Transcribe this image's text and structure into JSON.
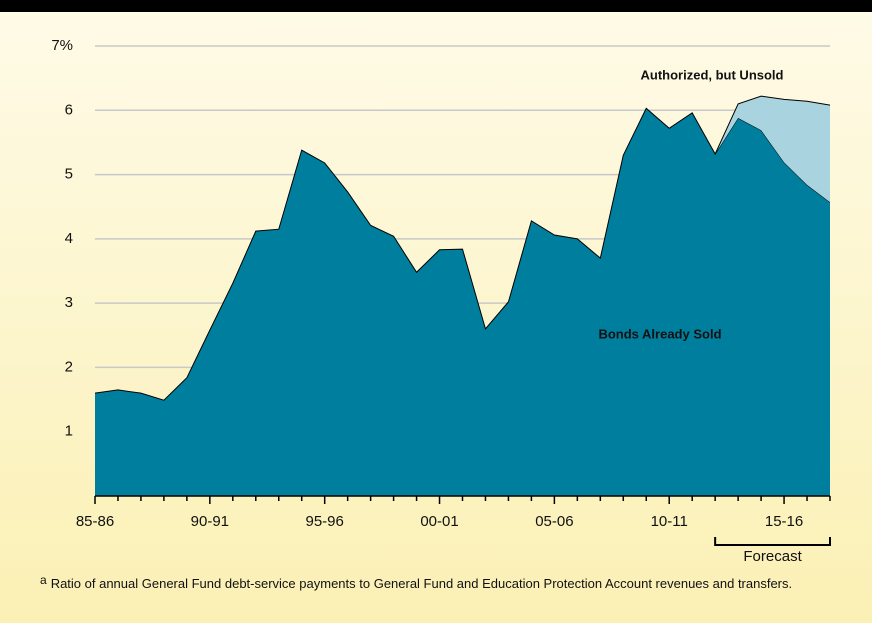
{
  "chart_data": {
    "type": "stacked_area",
    "categories": [
      "85-86",
      null,
      null,
      null,
      null,
      "90-91",
      null,
      null,
      null,
      null,
      "95-96",
      null,
      null,
      null,
      null,
      "00-01",
      null,
      null,
      null,
      null,
      "05-06",
      null,
      null,
      null,
      null,
      "10-11",
      null,
      null,
      null,
      null,
      "15-16",
      null,
      null
    ],
    "series": [
      {
        "name": "Bonds Already Sold",
        "color": "#007e9e",
        "values": [
          1.6,
          1.65,
          1.6,
          1.49,
          1.84,
          2.58,
          3.31,
          4.12,
          4.15,
          5.38,
          5.18,
          4.73,
          4.21,
          4.04,
          3.48,
          3.83,
          3.84,
          2.6,
          3.02,
          4.28,
          4.06,
          4.0,
          3.7,
          5.3,
          6.03,
          5.72,
          5.96,
          5.32,
          5.88,
          5.69,
          5.19,
          4.84,
          4.57
        ]
      },
      {
        "name": "Authorized, but Unsold",
        "color": "#a9d3df",
        "values": [
          null,
          null,
          null,
          null,
          null,
          null,
          null,
          null,
          null,
          null,
          null,
          null,
          null,
          null,
          null,
          null,
          null,
          null,
          null,
          null,
          null,
          null,
          null,
          null,
          null,
          null,
          null,
          0,
          0.22,
          0.53,
          0.98,
          1.3,
          1.51
        ]
      }
    ],
    "ylim": [
      0,
      7
    ],
    "yticks": [
      1,
      2,
      3,
      4,
      5,
      6,
      {
        "value": 7,
        "label": "7%"
      }
    ],
    "grid": true,
    "forecast_label": "Forecast",
    "footnote_marker": "a",
    "footnote": "Ratio of annual General Fund debt-service payments to General Fund and Education Protection Account revenues and transfers."
  }
}
